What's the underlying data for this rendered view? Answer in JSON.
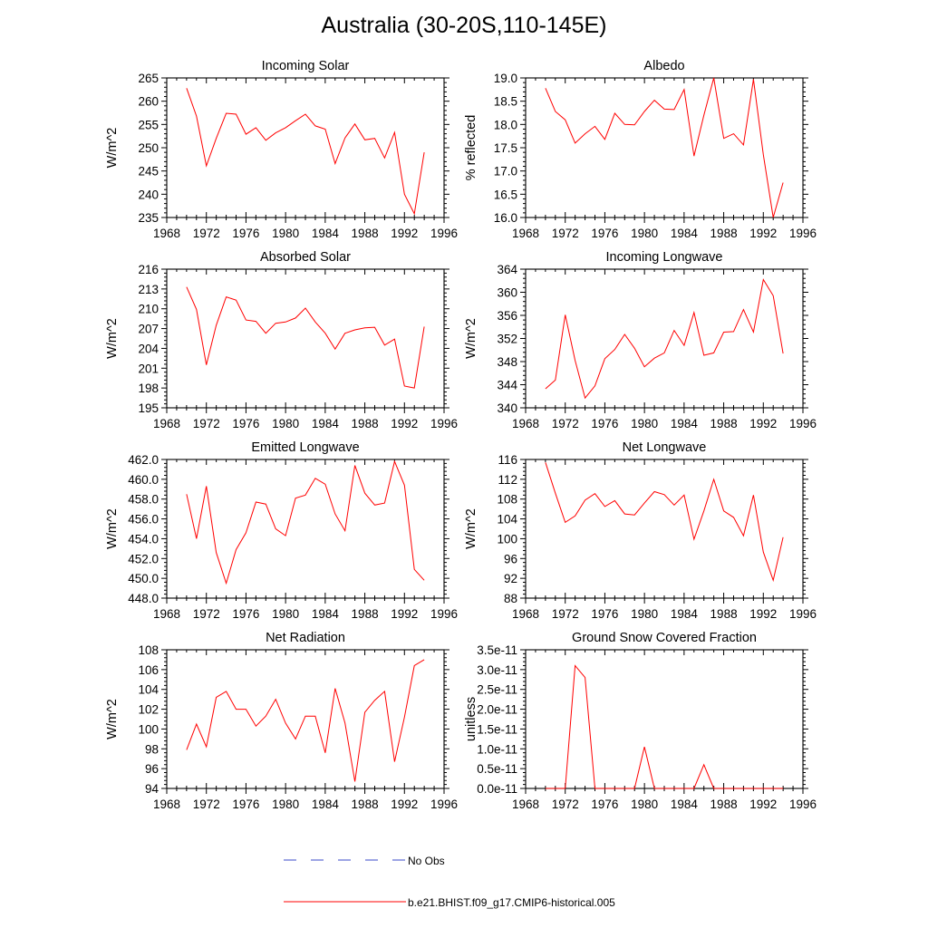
{
  "figure": {
    "title": "Australia (30-20S,110-145E)"
  },
  "legend": {
    "entries": [
      {
        "label": "No Obs",
        "style": "dashed",
        "color": "#3b4bc8"
      },
      {
        "label": "b.e21.BHIST.f09_g17.CMIP6-historical.005",
        "style": "solid",
        "color": "#ff0000"
      }
    ]
  },
  "chart_data": [
    {
      "type": "line",
      "title": "Incoming Solar",
      "ylabel": "W/m^2",
      "xlim": [
        1968,
        1996
      ],
      "ylim": [
        235,
        265
      ],
      "yticks": [
        "235",
        "240",
        "245",
        "250",
        "255",
        "260",
        "265"
      ],
      "xticks": [
        "1968",
        "1972",
        "1976",
        "1980",
        "1984",
        "1988",
        "1992",
        "1996"
      ],
      "series": [
        {
          "color": "#ff0000",
          "x": [
            1970,
            1971,
            1972,
            1973,
            1974,
            1975,
            1976,
            1977,
            1978,
            1979,
            1980,
            1981,
            1982,
            1983,
            1984,
            1985,
            1986,
            1987,
            1988,
            1989,
            1990,
            1991,
            1992,
            1993,
            1994
          ],
          "y": [
            262.8,
            256.8,
            246.1,
            252.0,
            257.4,
            257.2,
            252.9,
            254.3,
            251.6,
            253.2,
            254.3,
            255.8,
            257.2,
            254.7,
            254.0,
            246.6,
            252.1,
            255.1,
            251.7,
            252.0,
            247.8,
            253.3,
            240.0,
            235.8,
            249.0
          ]
        }
      ]
    },
    {
      "type": "line",
      "title": "Albedo",
      "ylabel": "% reflected",
      "xlim": [
        1968,
        1996
      ],
      "ylim": [
        16.0,
        19.0
      ],
      "yticks": [
        "16.0",
        "16.5",
        "17.0",
        "17.5",
        "18.0",
        "18.5",
        "19.0"
      ],
      "xticks": [
        "1968",
        "1972",
        "1976",
        "1980",
        "1984",
        "1988",
        "1992",
        "1996"
      ],
      "series": [
        {
          "color": "#ff0000",
          "x": [
            1970,
            1971,
            1972,
            1973,
            1974,
            1975,
            1976,
            1977,
            1978,
            1979,
            1980,
            1981,
            1982,
            1983,
            1984,
            1985,
            1986,
            1987,
            1988,
            1989,
            1990,
            1991,
            1992,
            1993,
            1994
          ],
          "y": [
            18.78,
            18.28,
            18.1,
            17.6,
            17.8,
            17.96,
            17.68,
            18.24,
            18.0,
            17.99,
            18.28,
            18.52,
            18.33,
            18.32,
            18.75,
            17.32,
            18.2,
            19.0,
            17.7,
            17.8,
            17.56,
            18.97,
            17.35,
            16.0,
            16.75
          ]
        }
      ]
    },
    {
      "type": "line",
      "title": "Absorbed Solar",
      "ylabel": "W/m^2",
      "xlim": [
        1968,
        1996
      ],
      "ylim": [
        195,
        216
      ],
      "yticks": [
        "195",
        "198",
        "201",
        "204",
        "207",
        "210",
        "213",
        "216"
      ],
      "xticks": [
        "1968",
        "1972",
        "1976",
        "1980",
        "1984",
        "1988",
        "1992",
        "1996"
      ],
      "series": [
        {
          "color": "#ff0000",
          "x": [
            1970,
            1971,
            1972,
            1973,
            1974,
            1975,
            1976,
            1977,
            1978,
            1979,
            1980,
            1981,
            1982,
            1983,
            1984,
            1985,
            1986,
            1987,
            1988,
            1989,
            1990,
            1991,
            1992,
            1993,
            1994
          ],
          "y": [
            213.3,
            209.9,
            201.5,
            207.5,
            211.8,
            211.3,
            208.3,
            208.1,
            206.3,
            207.8,
            208.0,
            208.6,
            210.1,
            208.0,
            206.3,
            203.9,
            206.3,
            206.8,
            207.1,
            207.2,
            204.5,
            205.4,
            198.3,
            198.0,
            207.3
          ]
        }
      ]
    },
    {
      "type": "line",
      "title": "Incoming Longwave",
      "ylabel": "W/m^2",
      "xlim": [
        1968,
        1996
      ],
      "ylim": [
        340,
        364
      ],
      "yticks": [
        "340",
        "344",
        "348",
        "352",
        "356",
        "360",
        "364"
      ],
      "xticks": [
        "1968",
        "1972",
        "1976",
        "1980",
        "1984",
        "1988",
        "1992",
        "1996"
      ],
      "series": [
        {
          "color": "#ff0000",
          "x": [
            1970,
            1971,
            1972,
            1973,
            1974,
            1975,
            1976,
            1977,
            1978,
            1979,
            1980,
            1981,
            1982,
            1983,
            1984,
            1985,
            1986,
            1987,
            1988,
            1989,
            1990,
            1991,
            1992,
            1993,
            1994
          ],
          "y": [
            343.3,
            344.8,
            356.1,
            348.2,
            341.7,
            343.8,
            348.5,
            350.1,
            352.7,
            350.3,
            347.1,
            348.6,
            349.5,
            353.4,
            350.8,
            356.5,
            349.1,
            349.5,
            353.1,
            353.2,
            357.0,
            353.1,
            362.2,
            359.4,
            349.4
          ]
        }
      ]
    },
    {
      "type": "line",
      "title": "Emitted Longwave",
      "ylabel": "W/m^2",
      "xlim": [
        1968,
        1996
      ],
      "ylim": [
        448.0,
        462.0
      ],
      "yticks": [
        "448.0",
        "450.0",
        "452.0",
        "454.0",
        "456.0",
        "458.0",
        "460.0",
        "462.0"
      ],
      "xticks": [
        "1968",
        "1972",
        "1976",
        "1980",
        "1984",
        "1988",
        "1992",
        "1996"
      ],
      "series": [
        {
          "color": "#ff0000",
          "x": [
            1970,
            1971,
            1972,
            1973,
            1974,
            1975,
            1976,
            1977,
            1978,
            1979,
            1980,
            1981,
            1982,
            1983,
            1984,
            1985,
            1986,
            1987,
            1988,
            1989,
            1990,
            1991,
            1992,
            1993,
            1994
          ],
          "y": [
            458.5,
            454.0,
            459.3,
            452.6,
            449.5,
            452.9,
            454.6,
            457.7,
            457.5,
            455.0,
            454.3,
            458.1,
            458.4,
            460.1,
            459.5,
            456.5,
            454.8,
            461.4,
            458.6,
            457.4,
            457.6,
            461.8,
            459.4,
            450.9,
            449.8
          ]
        }
      ]
    },
    {
      "type": "line",
      "title": "Net Longwave",
      "ylabel": "W/m^2",
      "xlim": [
        1968,
        1996
      ],
      "ylim": [
        88,
        116
      ],
      "yticks": [
        "88",
        "92",
        "96",
        "100",
        "104",
        "108",
        "112",
        "116"
      ],
      "xticks": [
        "1968",
        "1972",
        "1976",
        "1980",
        "1984",
        "1988",
        "1992",
        "1996"
      ],
      "series": [
        {
          "color": "#ff0000",
          "x": [
            1970,
            1971,
            1972,
            1973,
            1974,
            1975,
            1976,
            1977,
            1978,
            1979,
            1980,
            1981,
            1982,
            1983,
            1984,
            1985,
            1986,
            1987,
            1988,
            1989,
            1990,
            1991,
            1992,
            1993,
            1994
          ],
          "y": [
            115.4,
            109.2,
            103.3,
            104.6,
            107.8,
            109.1,
            106.5,
            107.7,
            105.0,
            104.8,
            107.2,
            109.5,
            108.9,
            106.8,
            108.8,
            99.9,
            105.6,
            112.0,
            105.6,
            104.3,
            100.6,
            108.8,
            97.3,
            91.6,
            100.3
          ]
        }
      ]
    },
    {
      "type": "line",
      "title": "Net Radiation",
      "ylabel": "W/m^2",
      "xlim": [
        1968,
        1996
      ],
      "ylim": [
        94,
        108
      ],
      "yticks": [
        "94",
        "96",
        "98",
        "100",
        "102",
        "104",
        "106",
        "108"
      ],
      "xticks": [
        "1968",
        "1972",
        "1976",
        "1980",
        "1984",
        "1988",
        "1992",
        "1996"
      ],
      "series": [
        {
          "color": "#ff0000",
          "x": [
            1970,
            1971,
            1972,
            1973,
            1974,
            1975,
            1976,
            1977,
            1978,
            1979,
            1980,
            1981,
            1982,
            1983,
            1984,
            1985,
            1986,
            1987,
            1988,
            1989,
            1990,
            1991,
            1992,
            1993,
            1994
          ],
          "y": [
            97.9,
            100.5,
            98.2,
            103.2,
            103.8,
            102.0,
            102.0,
            100.3,
            101.3,
            103.0,
            100.6,
            99.0,
            101.3,
            101.3,
            97.6,
            104.1,
            100.6,
            94.7,
            101.7,
            102.9,
            103.8,
            96.7,
            101.2,
            106.4,
            107.0
          ]
        }
      ]
    },
    {
      "type": "line",
      "title": "Ground Snow Covered Fraction",
      "ylabel": "unitless",
      "xlim": [
        1968,
        1996
      ],
      "ylim": [
        0.0,
        3.5
      ],
      "yticks": [
        "0.0e-11",
        "0.5e-11",
        "1.0e-11",
        "1.5e-11",
        "2.0e-11",
        "2.5e-11",
        "3.0e-11",
        "3.5e-11"
      ],
      "xticks": [
        "1968",
        "1972",
        "1976",
        "1980",
        "1984",
        "1988",
        "1992",
        "1996"
      ],
      "y_units_note": "values in units of 1e-11",
      "series": [
        {
          "color": "#ff0000",
          "x": [
            1970,
            1971,
            1972,
            1973,
            1974,
            1975,
            1976,
            1977,
            1978,
            1979,
            1980,
            1981,
            1982,
            1983,
            1984,
            1985,
            1986,
            1987,
            1988,
            1989,
            1990,
            1991,
            1992,
            1993,
            1994
          ],
          "y": [
            0,
            0,
            0,
            3.1,
            2.8,
            0,
            0,
            0,
            0,
            0,
            1.05,
            0,
            0,
            0,
            0,
            0,
            0.6,
            0,
            0,
            0,
            0,
            0,
            0,
            0,
            0
          ]
        }
      ]
    }
  ]
}
